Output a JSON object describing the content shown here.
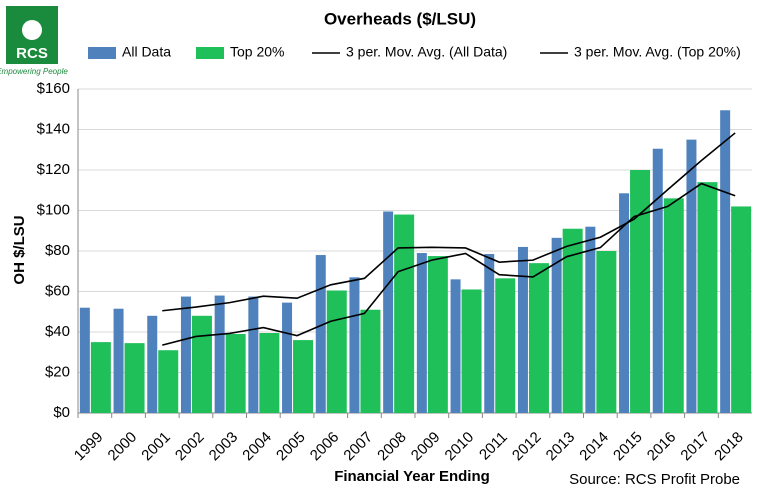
{
  "logo": {
    "name": "RCS",
    "tagline": "Empowering People"
  },
  "chart_data": {
    "type": "bar",
    "title": "Overheads ($/LSU)",
    "x_label": "Financial Year Ending",
    "y_label": "OH $/LSU",
    "source": "Source: RCS Profit Probe",
    "categories": [
      "1999",
      "2000",
      "2001",
      "2002",
      "2003",
      "2004",
      "2005",
      "2006",
      "2007",
      "2008",
      "2009",
      "2010",
      "2011",
      "2012",
      "2013",
      "2014",
      "2015",
      "2016",
      "2017",
      "2018"
    ],
    "series": [
      {
        "name": "All Data",
        "type": "bar",
        "color": "#4f81bd",
        "values": [
          52,
          51.5,
          48,
          57.5,
          58,
          57.5,
          54.5,
          78,
          67,
          99.5,
          79,
          66,
          78.5,
          82,
          86.5,
          92,
          108.5,
          130.5,
          135,
          149.5
        ]
      },
      {
        "name": "Top 20%",
        "type": "bar",
        "color": "#1fbf5a",
        "values": [
          35,
          34.5,
          31,
          48,
          39,
          39.5,
          36,
          60.5,
          51,
          98,
          77.5,
          61,
          66.5,
          74,
          91,
          80,
          120,
          106,
          114,
          102
        ]
      },
      {
        "name": "3 per. Mov. Avg. (All Data)",
        "type": "line",
        "color": "#000000",
        "values": [
          null,
          null,
          50.5,
          52.3,
          54.5,
          57.7,
          56.7,
          63.3,
          66.5,
          81.5,
          81.8,
          81.5,
          74.5,
          75.5,
          82.3,
          86.8,
          95.7,
          110.3,
          124.7,
          138.3
        ]
      },
      {
        "name": "3 per. Mov. Avg. (Top 20%)",
        "type": "line",
        "color": "#000000",
        "values": [
          null,
          null,
          33.5,
          37.8,
          39.3,
          42.2,
          38.2,
          45.3,
          49.2,
          69.8,
          75.5,
          78.8,
          68.3,
          67.2,
          77.2,
          81.7,
          97,
          102,
          113.3,
          107.3
        ]
      }
    ],
    "ylim": [
      0,
      160
    ],
    "yticks": [
      {
        "value": 0,
        "label": "$0"
      },
      {
        "value": 20,
        "label": "$20"
      },
      {
        "value": 40,
        "label": "$40"
      },
      {
        "value": 60,
        "label": "$60"
      },
      {
        "value": 80,
        "label": "$80"
      },
      {
        "value": 100,
        "label": "$100"
      },
      {
        "value": 120,
        "label": "$120"
      },
      {
        "value": 140,
        "label": "$140"
      },
      {
        "value": 160,
        "label": "$160"
      }
    ],
    "grid": true
  }
}
